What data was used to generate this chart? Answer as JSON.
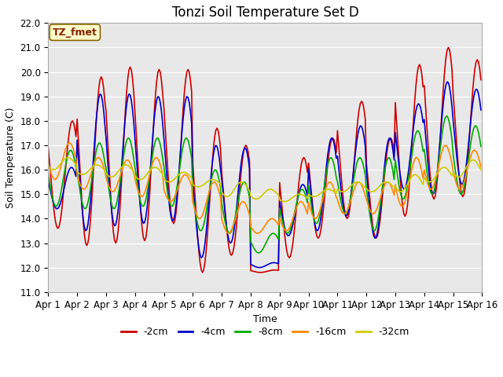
{
  "title": "Tonzi Soil Temperature Set D",
  "xlabel": "Time",
  "ylabel": "Soil Temperature (C)",
  "ylim": [
    11.0,
    22.0
  ],
  "yticks": [
    11.0,
    12.0,
    13.0,
    14.0,
    15.0,
    16.0,
    17.0,
    18.0,
    19.0,
    20.0,
    21.0,
    22.0
  ],
  "xtick_labels": [
    "Apr 1",
    "Apr 2",
    "Apr 3",
    "Apr 4",
    "Apr 5",
    "Apr 6",
    "Apr 7",
    "Apr 8",
    "Apr 9",
    "Apr 10",
    "Apr 11",
    "Apr 12",
    "Apr 13",
    "Apr 14",
    "Apr 15",
    "Apr 16"
  ],
  "n_days": 15,
  "points_per_day": 24,
  "legend_labels": [
    "-2cm",
    "-4cm",
    "-8cm",
    "-16cm",
    "-32cm"
  ],
  "line_colors": [
    "#cc0000",
    "#0000cc",
    "#00aa00",
    "#ff8800",
    "#cccc00"
  ],
  "line_widths": [
    1.2,
    1.2,
    1.2,
    1.2,
    1.2
  ],
  "annotation_text": "TZ_fmet",
  "annotation_box_color": "#ffffcc",
  "annotation_border_color": "#886600",
  "annotation_text_color": "#882200",
  "bg_color": "#ffffff",
  "plot_bg_color": "#e8e8e8",
  "grid_color": "#ffffff",
  "title_fontsize": 12,
  "label_fontsize": 9,
  "tick_fontsize": 8.5,
  "peaks_2cm": [
    18.0,
    19.8,
    20.2,
    20.1,
    20.1,
    17.7,
    17.0,
    11.9,
    16.5,
    17.3,
    18.8,
    17.3,
    20.3,
    21.0,
    20.5
  ],
  "troughs_2cm": [
    13.6,
    12.9,
    13.0,
    13.1,
    13.8,
    11.8,
    12.5,
    11.8,
    12.4,
    13.2,
    14.0,
    13.2,
    14.1,
    14.8,
    14.9
  ],
  "peaks_4cm": [
    16.1,
    19.1,
    19.1,
    19.0,
    19.0,
    17.0,
    16.9,
    12.2,
    15.4,
    17.3,
    17.8,
    17.3,
    18.7,
    19.6,
    19.3
  ],
  "troughs_4cm": [
    14.4,
    13.5,
    13.7,
    13.8,
    13.9,
    12.4,
    13.0,
    12.0,
    13.3,
    13.5,
    14.1,
    13.2,
    15.2,
    15.0,
    15.4
  ],
  "peaks_8cm": [
    16.8,
    17.1,
    17.3,
    17.3,
    17.3,
    16.0,
    15.5,
    13.4,
    15.2,
    16.5,
    16.5,
    16.5,
    17.6,
    18.2,
    17.8
  ],
  "troughs_8cm": [
    14.5,
    14.4,
    14.4,
    14.5,
    14.5,
    13.5,
    13.4,
    12.6,
    13.4,
    13.8,
    14.2,
    13.5,
    14.8,
    15.0,
    15.0
  ],
  "peaks_16cm": [
    17.1,
    16.5,
    16.4,
    16.5,
    15.8,
    15.5,
    14.7,
    14.0,
    14.7,
    15.5,
    15.5,
    15.5,
    16.5,
    17.0,
    16.8
  ],
  "troughs_16cm": [
    15.6,
    15.2,
    15.1,
    14.9,
    14.7,
    14.0,
    13.4,
    13.4,
    13.5,
    14.0,
    14.2,
    14.2,
    14.5,
    15.2,
    15.2
  ],
  "peaks_32cm": [
    16.5,
    16.2,
    16.2,
    16.1,
    15.9,
    15.6,
    15.5,
    15.2,
    15.0,
    15.2,
    15.5,
    15.5,
    15.8,
    16.1,
    16.4
  ],
  "troughs_32cm": [
    16.0,
    15.8,
    15.7,
    15.6,
    15.5,
    15.3,
    14.9,
    14.8,
    14.7,
    14.9,
    15.1,
    15.1,
    15.1,
    15.5,
    15.7
  ]
}
